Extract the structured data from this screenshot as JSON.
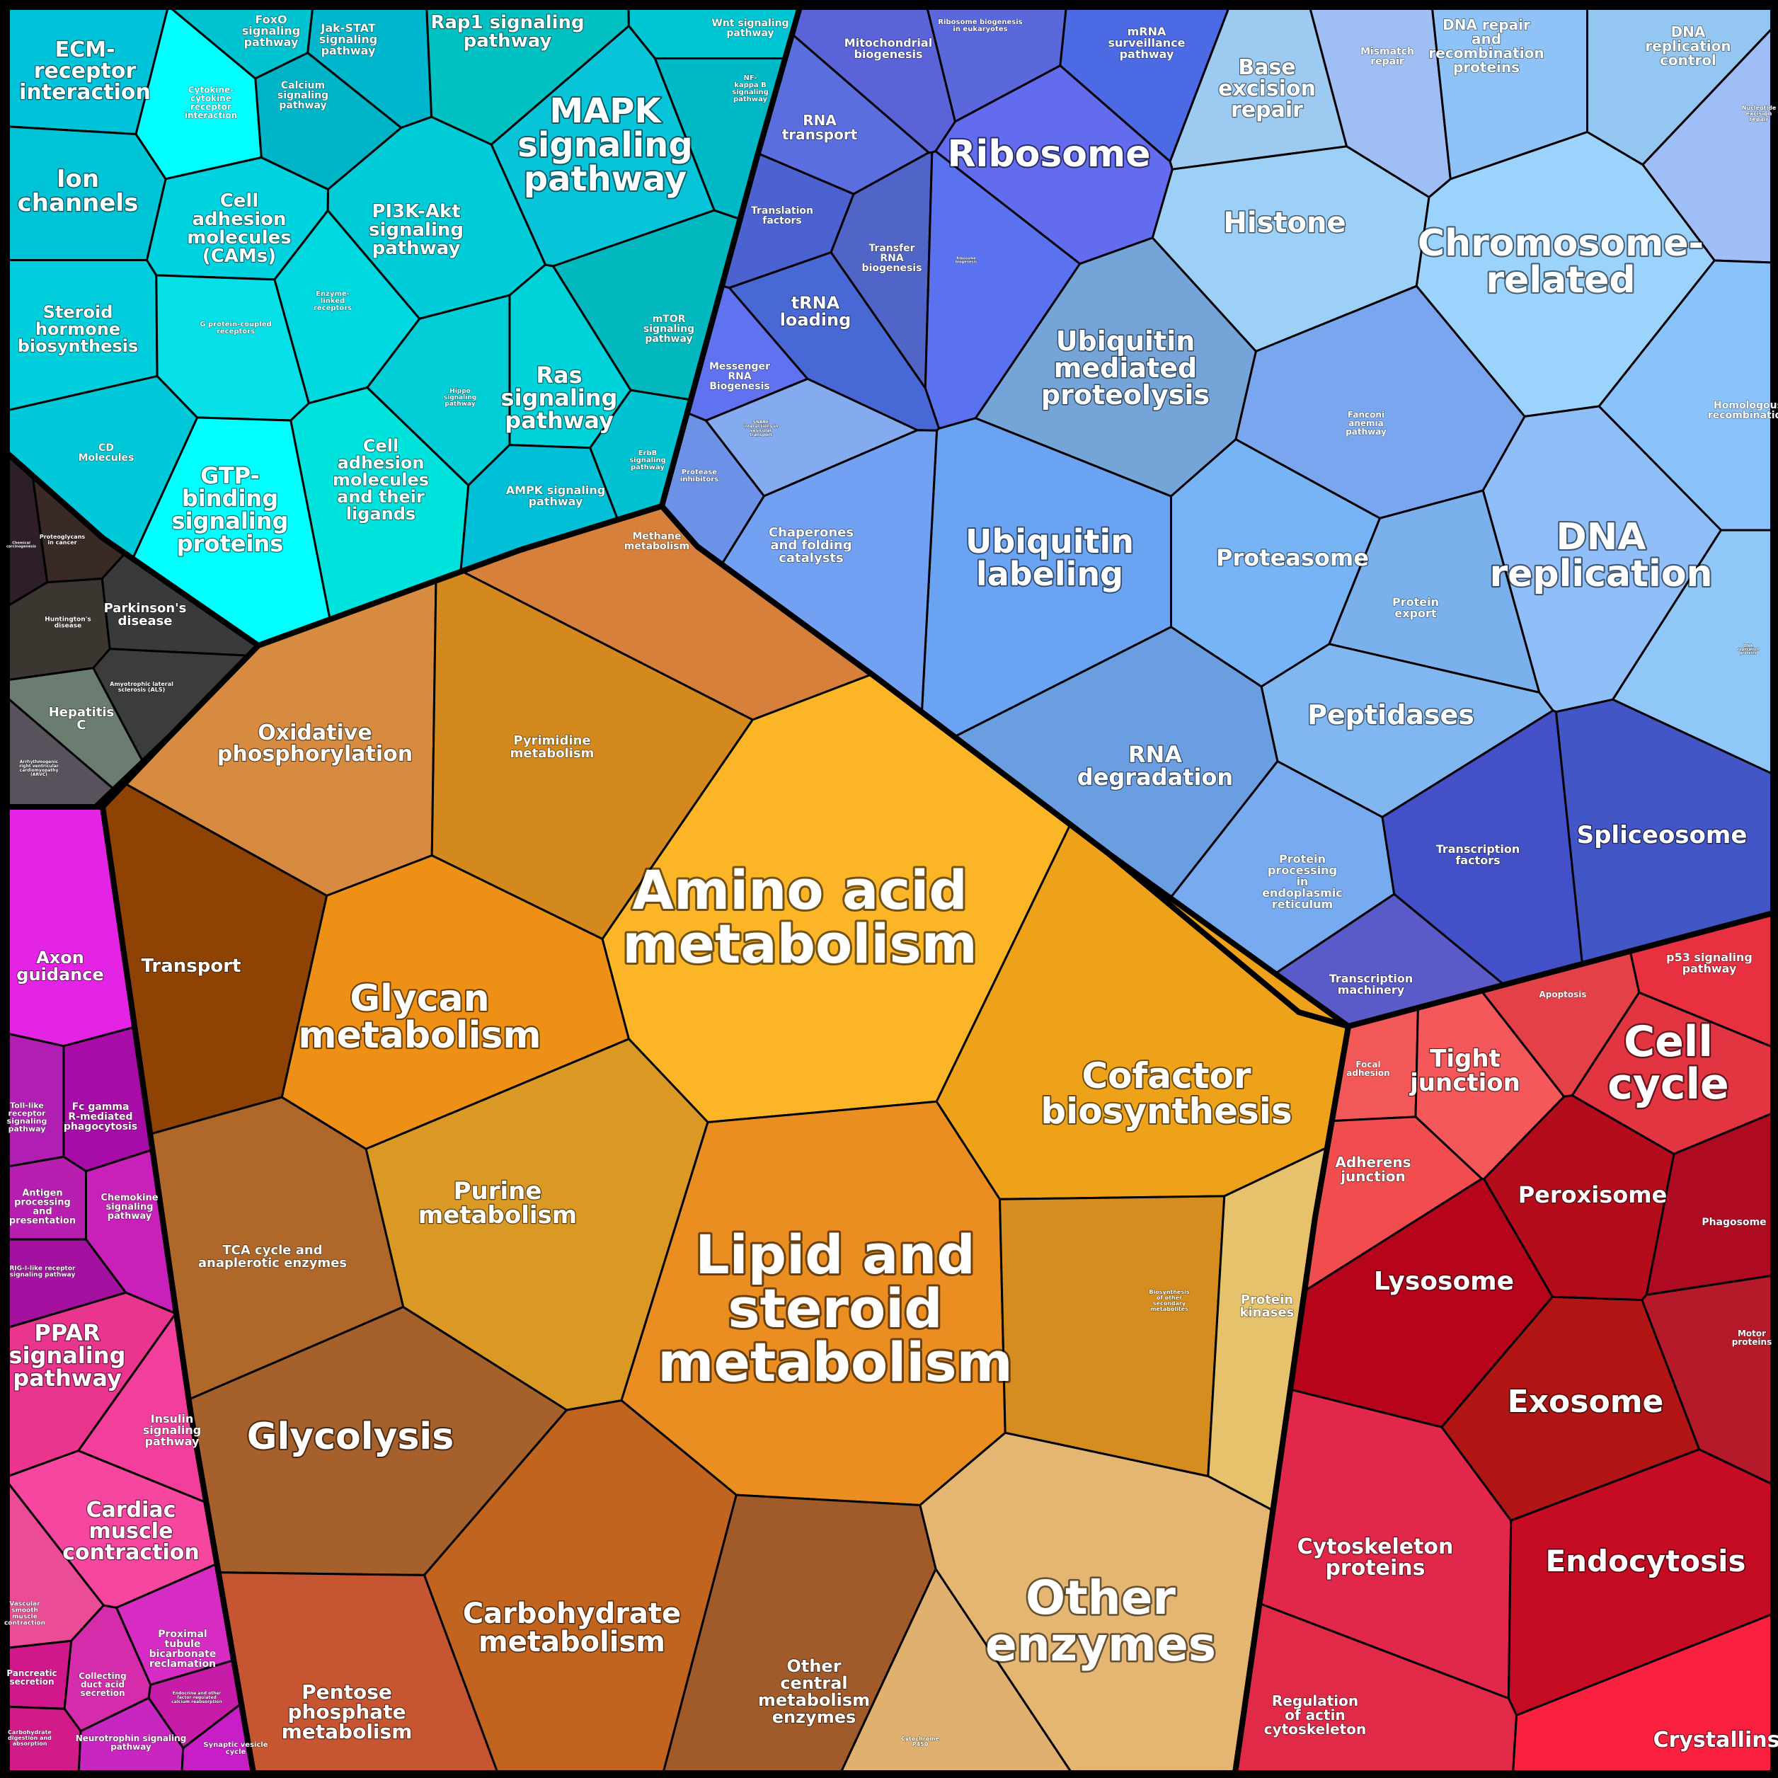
{
  "diagram": {
    "groups": [
      {
        "name": "signaling",
        "cells": [
          {
            "label": "ECM-\nreceptor\ninteraction",
            "color": "#00c2d8"
          },
          {
            "label": "Ion\nchannels",
            "color": "#00c4d6"
          },
          {
            "label": "Steroid\nhormone\nbiosynthesis",
            "color": "#00cedd"
          },
          {
            "label": "CD\nMolecules",
            "color": "#00c8d8"
          },
          {
            "label": "Cytokine-\ncytokine\nreceptor\ninteraction",
            "color": "#00ffff"
          },
          {
            "label": "Cell\nadhesion\nmolecules\n(CAMs)",
            "color": "#00d3e0"
          },
          {
            "label": "G protein-coupled\nreceptors",
            "color": "#06e0e6"
          },
          {
            "label": "Enzyme-\nlinked\nreceptors",
            "color": "#00d8e0"
          },
          {
            "label": "GTP-\nbinding\nsignaling\nproteins",
            "color": "#00ffff"
          },
          {
            "label": "Cell\nadhesion\nmolecules\nand their\nligands",
            "color": "#00e3dd"
          },
          {
            "label": "FoxO\nsignaling\npathway",
            "color": "#00c3d1"
          },
          {
            "label": "Jak-STAT\nsignaling\npathway",
            "color": "#00b6cd"
          },
          {
            "label": "Calcium\nsignaling\npathway",
            "color": "#00b4c8"
          },
          {
            "label": "Rap1 signaling\npathway",
            "color": "#00c0c2"
          },
          {
            "label": "Wnt signaling\npathway",
            "color": "#00c6d3"
          },
          {
            "label": "NF-\nkappa B\nsignaling\npathway",
            "color": "#00b9c6"
          },
          {
            "label": "MAPK\nsignaling\npathway",
            "color": "#08c4d9"
          },
          {
            "label": "PI3K-Akt\nsignaling\npathway",
            "color": "#00ccd8"
          },
          {
            "label": "Ras\nsignaling\npathway",
            "color": "#00d2da"
          },
          {
            "label": "mTOR\nsignaling\npathway",
            "color": "#00b8bd"
          },
          {
            "label": "Hippo\nsignaling\npathway",
            "color": "#00cdd6"
          },
          {
            "label": "ErbB\nsignaling\npathway",
            "color": "#00c2d0"
          },
          {
            "label": "AMPK signaling\npathway",
            "color": "#00bfd6"
          }
        ]
      },
      {
        "name": "disease",
        "cells": [
          {
            "label": "Chemical\ncarcinogenesis",
            "color": "#2d1e28"
          },
          {
            "label": "Proteoglycans\nin cancer",
            "color": "#3a2a26"
          },
          {
            "label": "Huntington's\ndisease",
            "color": "#3c3631"
          },
          {
            "label": "Parkinson's\ndisease",
            "color": "#393a3c"
          },
          {
            "label": "Amyotrophic lateral\nsclerosis (ALS)",
            "color": "#3a3d3b"
          },
          {
            "label": "Hepatitis\nC",
            "color": "#6b7c70"
          },
          {
            "label": "Arrhythmogenic\nright ventricular\ncardiomyopathy\n(ARVC)",
            "color": "#57525c"
          }
        ]
      },
      {
        "name": "genetic-info",
        "cells": [
          {
            "label": "Mitochondrial\nbiogenesis",
            "color": "#5a64d8"
          },
          {
            "label": "Ribosome biogenesis\nin eukaryotes",
            "color": "#5b68dc"
          },
          {
            "label": "mRNA\nsurveillance\npathway",
            "color": "#4c6ae4"
          },
          {
            "label": "RNA\ntransport",
            "color": "#5a6ee0"
          },
          {
            "label": "Ribosome",
            "color": "#636cef"
          },
          {
            "label": "Translation\nfactors",
            "color": "#4c62d0"
          },
          {
            "label": "Transfer\nRNA\nbiogenesis",
            "color": "#5164c8"
          },
          {
            "label": "Ribosome\nbiogenesis",
            "color": "#5a72f0"
          },
          {
            "label": "tRNA\nloading",
            "color": "#4868d6"
          },
          {
            "label": "Messenger\nRNA\nBiogenesis",
            "color": "#6072f0"
          },
          {
            "label": "Base\nexcision\nrepair",
            "color": "#9ccaf0"
          },
          {
            "label": "Mismatch\nrepair",
            "color": "#9fbff4"
          },
          {
            "label": "DNA repair\nand\nrecombination\nproteins",
            "color": "#8fc3f7"
          },
          {
            "label": "DNA\nreplication\ncontrol",
            "color": "#93c6f0"
          },
          {
            "label": "Nucleotide\nexcision\nrepair",
            "color": "#9fbdf7"
          },
          {
            "label": "Histone",
            "color": "#9dd0f7"
          },
          {
            "label": "Chromosome-\nrelated",
            "color": "#9cd3fc"
          },
          {
            "label": "Homologous\nrecombination",
            "color": "#8ac2fb"
          },
          {
            "label": "Fanconi\nanemia\npathway",
            "color": "#7aa6f0"
          },
          {
            "label": "DNA\nreplication",
            "color": "#90bef9"
          },
          {
            "label": "DNA\nreplication\nproteins",
            "color": "#8fc8f8"
          },
          {
            "label": "Ubiquitin\nmediated\nproteolysis",
            "color": "#74a4d8"
          },
          {
            "label": "Ubiquitin\nlabeling",
            "color": "#6aa3f2"
          },
          {
            "label": "Proteasome",
            "color": "#76b4f6"
          },
          {
            "label": "Protein\nexport",
            "color": "#7ab0ec"
          },
          {
            "label": "Peptidases",
            "color": "#80b7f1"
          },
          {
            "label": "Protease\ninhibitors",
            "color": "#6c92e8"
          },
          {
            "label": "Chaperones\nand folding\ncatalysts",
            "color": "#72a0f2"
          },
          {
            "label": "SNARE\ninteractions in\nvesicular\ntransport",
            "color": "#84abf0"
          },
          {
            "label": "RNA\ndegradation",
            "color": "#6a9ee0"
          },
          {
            "label": "Protein\nprocessing\nin\nendoplasmic\nreticulum",
            "color": "#78aaf0"
          },
          {
            "label": "Transcription\nfactors",
            "color": "#4450c8"
          },
          {
            "label": "Spliceosome",
            "color": "#4356c6"
          },
          {
            "label": "Transcription\nmachinery",
            "color": "#5a5ac8"
          }
        ]
      },
      {
        "name": "metabolism",
        "cells": [
          {
            "label": "Oxidative\nphosphorylation",
            "color": "#d68b41"
          },
          {
            "label": "Methane\nmetabolism",
            "color": "#d6803c"
          },
          {
            "label": "Pyrimidine\nmetabolism",
            "color": "#d4891e"
          },
          {
            "label": "Transport",
            "color": "#8e4304"
          },
          {
            "label": "Glycan\nmetabolism",
            "color": "#ee9015"
          },
          {
            "label": "Amino acid\nmetabolism",
            "color": "#fdb528"
          },
          {
            "label": "Cofactor\nbiosynthesis",
            "color": "#eea219"
          },
          {
            "label": "Purine\nmetabolism",
            "color": "#da9924"
          },
          {
            "label": "Lipid and\nsteroid\nmetabolism",
            "color": "#ea8e21"
          },
          {
            "label": "TCA cycle and\nanaplerotic enzymes",
            "color": "#b0672a"
          },
          {
            "label": "Glycolysis",
            "color": "#a6602b"
          },
          {
            "label": "Biosynthesis\nof other\nsecondary\nmetabolites",
            "color": "#d48d1e"
          },
          {
            "label": "Protein\nkinases",
            "color": "#e6c26c"
          },
          {
            "label": "Other\nenzymes",
            "color": "#e4b672"
          },
          {
            "label": "Carbohydrate\nmetabolism",
            "color": "#c0641f"
          },
          {
            "label": "Pentose\nphosphate\nmetabolism",
            "color": "#c65531"
          },
          {
            "label": "Other\ncentral\nmetabolism\nenzymes",
            "color": "#a15a2a"
          },
          {
            "label": "Cytochrome\nP450",
            "color": "#e0b06e"
          }
        ]
      },
      {
        "name": "organismal",
        "cells": [
          {
            "label": "Axon\nguidance",
            "color": "#e424e4"
          },
          {
            "label": "Toll-like\nreceptor\nsignaling\npathway",
            "color": "#b01eb4"
          },
          {
            "label": "Fc gamma\nR-mediated\nphagocytosis",
            "color": "#a80ca8"
          },
          {
            "label": "Antigen\nprocessing\nand\npresentation",
            "color": "#b81eb0"
          },
          {
            "label": "Chemokine\nsignaling\npathway",
            "color": "#c820b8"
          },
          {
            "label": "RIG-I-like receptor\nsignaling pathway",
            "color": "#a410a0"
          },
          {
            "label": "PPAR\nsignaling\npathway",
            "color": "#ea358f"
          },
          {
            "label": "Insulin\nsignaling\npathway",
            "color": "#f33f9c"
          },
          {
            "label": "Cardiac\nmuscle\ncontraction",
            "color": "#f646a0"
          },
          {
            "label": "Vascular\nsmooth\nmuscle\ncontraction",
            "color": "#ea4c96"
          },
          {
            "label": "Proximal\ntubule\nbicarbonate\nreclamation",
            "color": "#d62cc4"
          },
          {
            "label": "Pancreatic\nsecretion",
            "color": "#d0188c"
          },
          {
            "label": "Collecting\nduct acid\nsecretion",
            "color": "#d42caa"
          },
          {
            "label": "Endocrine and other\nfactor-regulated\ncalcium reabsorption",
            "color": "#c61ca8"
          },
          {
            "label": "Carbohydrate\ndigestion and\nabsorption",
            "color": "#d11c88"
          },
          {
            "label": "Neurotrophin signaling\npathway",
            "color": "#c826c0"
          },
          {
            "label": "Synaptic vesicle\ncycle",
            "color": "#c81ec8"
          }
        ]
      },
      {
        "name": "cellular",
        "cells": [
          {
            "label": "p53 signaling\npathway",
            "color": "#e83040"
          },
          {
            "label": "Apoptosis",
            "color": "#e44048"
          },
          {
            "label": "Cell\ncycle",
            "color": "#e33442"
          },
          {
            "label": "Focal\nadhesion",
            "color": "#f35858"
          },
          {
            "label": "Tight\njunction",
            "color": "#f5585a"
          },
          {
            "label": "Adherens\njunction",
            "color": "#f24d4e"
          },
          {
            "label": "Peroxisome",
            "color": "#b50c1c"
          },
          {
            "label": "Phagosome",
            "color": "#ae0a22"
          },
          {
            "label": "Lysosome",
            "color": "#b6051a"
          },
          {
            "label": "Motor\nproteins",
            "color": "#b41a2a"
          },
          {
            "label": "Exosome",
            "color": "#b21614"
          },
          {
            "label": "Cytoskeleton\nproteins",
            "color": "#e2284a"
          },
          {
            "label": "Endocytosis",
            "color": "#c50c24"
          },
          {
            "label": "Regulation\nof actin\ncytoskeleton",
            "color": "#e02a48"
          },
          {
            "label": "Crystallins",
            "color": "#fa2040"
          }
        ]
      }
    ]
  }
}
